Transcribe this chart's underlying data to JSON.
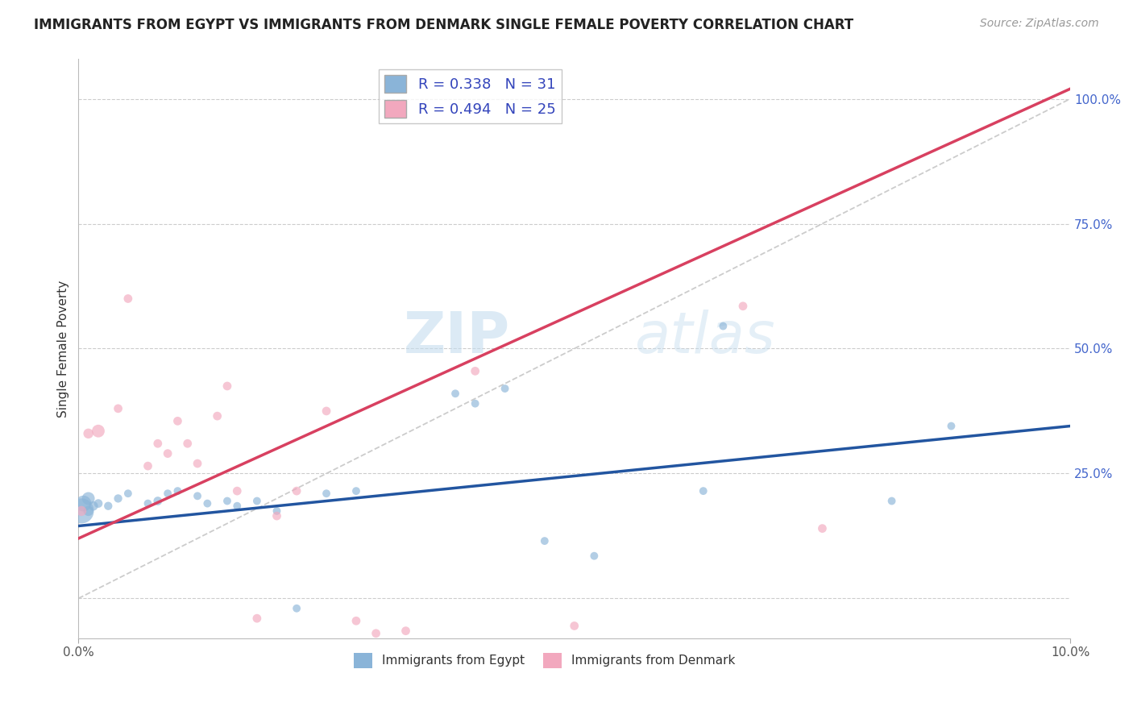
{
  "title": "IMMIGRANTS FROM EGYPT VS IMMIGRANTS FROM DENMARK SINGLE FEMALE POVERTY CORRELATION CHART",
  "source": "Source: ZipAtlas.com",
  "ylabel": "Single Female Poverty",
  "xlim": [
    0.0,
    0.1
  ],
  "ylim": [
    -0.08,
    1.08
  ],
  "egypt_color": "#8ab4d8",
  "denmark_color": "#f2a8be",
  "egypt_line_color": "#2255a0",
  "denmark_line_color": "#d84060",
  "diagonal_color": "#cccccc",
  "R_egypt": 0.338,
  "N_egypt": 31,
  "R_denmark": 0.494,
  "N_denmark": 25,
  "watermark_zip": "ZIP",
  "watermark_atlas": "atlas",
  "egypt_line_x0": 0.0,
  "egypt_line_y0": 0.145,
  "egypt_line_x1": 0.1,
  "egypt_line_y1": 0.345,
  "denmark_line_x0": 0.0,
  "denmark_line_y0": 0.12,
  "denmark_line_x1": 0.1,
  "denmark_line_y1": 1.02,
  "egypt_points_x": [
    0.0003,
    0.0005,
    0.001,
    0.001,
    0.0015,
    0.002,
    0.003,
    0.004,
    0.005,
    0.007,
    0.008,
    0.009,
    0.01,
    0.012,
    0.013,
    0.015,
    0.016,
    0.018,
    0.02,
    0.022,
    0.025,
    0.028,
    0.038,
    0.04,
    0.043,
    0.047,
    0.052,
    0.063,
    0.065,
    0.082,
    0.088
  ],
  "egypt_points_y": [
    0.175,
    0.19,
    0.2,
    0.175,
    0.185,
    0.19,
    0.185,
    0.2,
    0.21,
    0.19,
    0.195,
    0.21,
    0.215,
    0.205,
    0.19,
    0.195,
    0.185,
    0.195,
    0.175,
    -0.02,
    0.21,
    0.215,
    0.41,
    0.39,
    0.42,
    0.115,
    0.085,
    0.215,
    0.545,
    0.195,
    0.345
  ],
  "egypt_sizes": [
    500,
    200,
    130,
    80,
    70,
    60,
    55,
    55,
    50,
    50,
    60,
    50,
    50,
    50,
    50,
    50,
    50,
    50,
    50,
    50,
    50,
    50,
    50,
    50,
    50,
    50,
    50,
    50,
    50,
    50,
    50
  ],
  "denmark_points_x": [
    0.0003,
    0.001,
    0.002,
    0.004,
    0.005,
    0.007,
    0.008,
    0.009,
    0.01,
    0.011,
    0.012,
    0.014,
    0.015,
    0.016,
    0.018,
    0.02,
    0.022,
    0.025,
    0.028,
    0.03,
    0.033,
    0.04,
    0.05,
    0.067,
    0.075
  ],
  "denmark_points_y": [
    0.175,
    0.33,
    0.335,
    0.38,
    0.6,
    0.265,
    0.31,
    0.29,
    0.355,
    0.31,
    0.27,
    0.365,
    0.425,
    0.215,
    -0.04,
    0.165,
    0.215,
    0.375,
    -0.045,
    -0.07,
    -0.065,
    0.455,
    -0.055,
    0.585,
    0.14
  ],
  "denmark_sizes": [
    80,
    80,
    130,
    60,
    60,
    60,
    60,
    60,
    60,
    60,
    60,
    60,
    60,
    60,
    60,
    60,
    60,
    60,
    60,
    60,
    60,
    60,
    60,
    60,
    60
  ]
}
